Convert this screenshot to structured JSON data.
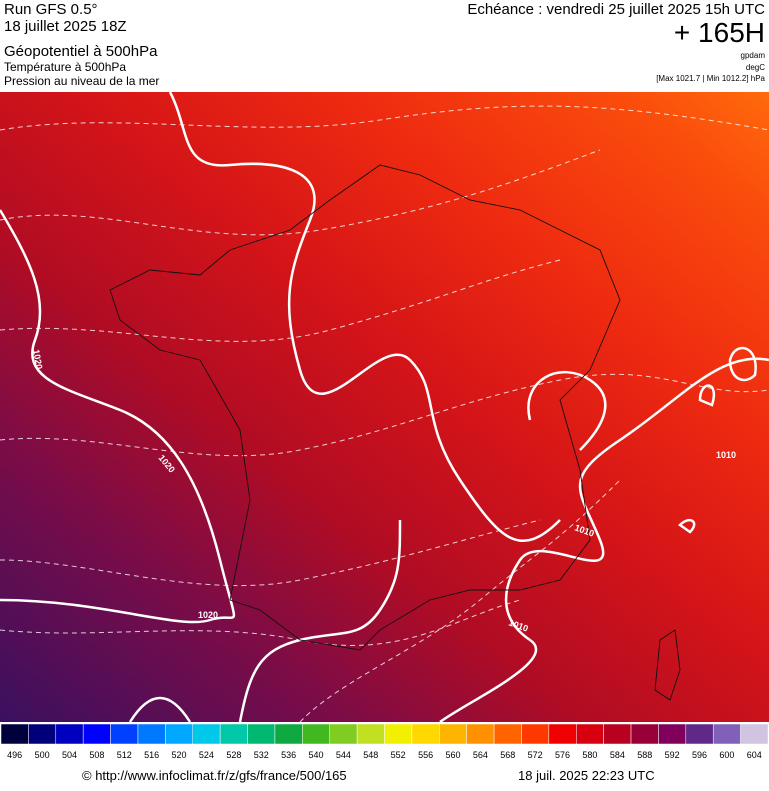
{
  "header": {
    "run": "Run GFS 0.5°",
    "run_date": "18 juillet 2025 18Z",
    "field_1": "Géopotentiel à 500hPa",
    "field_2": "Température à 500hPa",
    "field_3": "Pression au niveau de la mer",
    "valid_time": "Echéance : vendredi 25 juillet 2025 15h UTC",
    "lead": "+ 165H",
    "unit_1": "gpdam",
    "unit_2": "degC",
    "pressure_range": "[Max 1021.7 | Min 1012.2] hPa"
  },
  "map": {
    "contour_labels": [
      1020,
      1020,
      1020,
      1010,
      1010,
      1010
    ]
  },
  "colorbar": {
    "ticks": [
      496,
      500,
      504,
      508,
      512,
      516,
      520,
      524,
      528,
      532,
      536,
      540,
      544,
      548,
      552,
      556,
      560,
      564,
      568,
      572,
      576,
      580,
      584,
      588,
      592,
      596,
      600,
      604
    ],
    "colors": [
      "#00003c",
      "#00007a",
      "#0000c0",
      "#0000ff",
      "#0040ff",
      "#0078ff",
      "#00a8ff",
      "#00c8e8",
      "#00c8a8",
      "#00b870",
      "#10a840",
      "#40b820",
      "#80cc20",
      "#c0e020",
      "#f0f000",
      "#ffd800",
      "#ffb400",
      "#ff9000",
      "#ff6400",
      "#ff3800",
      "#f00000",
      "#d80010",
      "#b80020",
      "#980038",
      "#80005c",
      "#602888",
      "#8060b8",
      "#d0c4e0"
    ]
  },
  "footer": {
    "url": "© http://www.infoclimat.fr/z/gfs/france/500/165",
    "timestamp": "18 juil. 2025 22:23 UTC"
  }
}
